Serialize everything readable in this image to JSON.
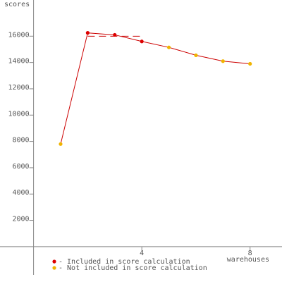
{
  "chart_data": {
    "type": "line",
    "y_label": "scores",
    "x_label": "warehouses",
    "x": [
      1,
      2,
      3,
      4,
      5,
      6,
      7,
      8
    ],
    "series": [
      {
        "color": "#cc0000",
        "values": [
          7800,
          16250,
          16100,
          15600,
          15150,
          14550,
          14100,
          13900
        ]
      }
    ],
    "point_colors": [
      "#f0b400",
      "#dd0000",
      "#dd0000",
      "#dd0000",
      "#f0b400",
      "#f0b400",
      "#f0b400",
      "#f0b400"
    ],
    "score_line": {
      "value": 16000,
      "x": [
        2,
        4
      ],
      "color": "#cc0000"
    },
    "legend": [
      {
        "label": "- Included in score calculation",
        "color": "#dd0000"
      },
      {
        "label": "- Not included in score calculation",
        "color": "#f0b400"
      }
    ],
    "xlim": [
      -1.24,
      9.18
    ],
    "ylim": [
      -2150,
      18750
    ],
    "xticks": [
      4,
      8
    ],
    "yticks": [
      2000,
      4000,
      6000,
      8000,
      10000,
      12000,
      14000,
      16000
    ]
  }
}
